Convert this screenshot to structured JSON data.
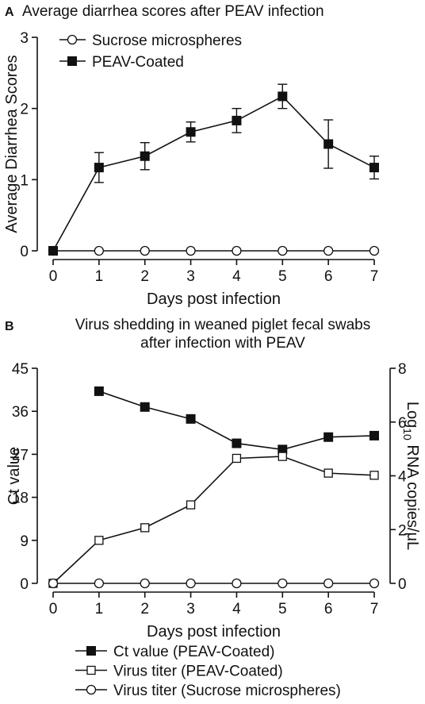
{
  "panels": [
    {
      "letter": "A",
      "title_lines": [
        "Average diarrhea scores after PEAV infection"
      ],
      "chart_data": {
        "type": "line",
        "title": "Average diarrhea scores after PEAV infection",
        "xlabel": "Days post infection",
        "ylabel": "Average Diarrhea Scores",
        "x": [
          0,
          1,
          2,
          3,
          4,
          5,
          6,
          7
        ],
        "xlim": [
          0,
          7
        ],
        "ylim": [
          0,
          3
        ],
        "x_ticks": [
          0,
          1,
          2,
          3,
          4,
          5,
          6,
          7
        ],
        "y_ticks": [
          0,
          1,
          2,
          3
        ],
        "legend_position": "top-left",
        "series": [
          {
            "name": "Sucrose microspheres",
            "marker": "open-circle",
            "axis": "left",
            "x": [
              0,
              1,
              2,
              3,
              4,
              5,
              6,
              7
            ],
            "values": [
              0,
              0,
              0,
              0,
              0,
              0,
              0,
              0
            ]
          },
          {
            "name": "PEAV-Coated",
            "marker": "filled-square",
            "axis": "left",
            "x": [
              0,
              1,
              2,
              3,
              4,
              5,
              6,
              7
            ],
            "values": [
              0,
              1.17,
              1.33,
              1.67,
              1.83,
              2.17,
              1.5,
              1.17
            ],
            "error": [
              0,
              0.21,
              0.19,
              0.14,
              0.17,
              0.17,
              0.34,
              0.16
            ]
          }
        ]
      }
    },
    {
      "letter": "B",
      "title_lines": [
        "Virus shedding in weaned piglet fecal swabs",
        "after infection with PEAV"
      ],
      "chart_data": {
        "type": "line",
        "title": "Virus shedding in weaned piglet fecal swabs after infection with PEAV",
        "xlabel": "Days post infection",
        "ylabel": "Ct value",
        "y2label": "Log10 RNA copies/μL",
        "y2label_parts": [
          "Log",
          "10",
          " RNA copies/μL"
        ],
        "x": [
          0,
          1,
          2,
          3,
          4,
          5,
          6,
          7
        ],
        "xlim": [
          0,
          7
        ],
        "ylim": [
          0,
          45
        ],
        "y2lim": [
          0,
          8
        ],
        "x_ticks": [
          0,
          1,
          2,
          3,
          4,
          5,
          6,
          7
        ],
        "y_ticks": [
          0,
          9,
          18,
          27,
          36,
          45
        ],
        "y2_ticks": [
          0,
          2,
          4,
          6,
          8
        ],
        "legend_position": "bottom",
        "series": [
          {
            "name": "Ct value (PEAV-Coated)",
            "marker": "filled-square",
            "axis": "left",
            "x": [
              1,
              2,
              3,
              4,
              5,
              6,
              7
            ],
            "values": [
              40.2,
              36.9,
              34.4,
              29.3,
              28.0,
              30.6,
              30.9
            ]
          },
          {
            "name": "Virus titer (PEAV-Coated)",
            "marker": "open-square",
            "axis": "right",
            "x": [
              0,
              1,
              2,
              3,
              4,
              5,
              6,
              7
            ],
            "values": [
              0,
              1.6,
              2.07,
              2.92,
              4.65,
              4.72,
              4.1,
              4.02
            ]
          },
          {
            "name": "Virus titer (Sucrose microspheres)",
            "marker": "open-circle",
            "axis": "right",
            "x": [
              0,
              1,
              2,
              3,
              4,
              5,
              6,
              7
            ],
            "values": [
              0,
              0,
              0,
              0,
              0,
              0,
              0,
              0
            ]
          }
        ]
      }
    }
  ]
}
